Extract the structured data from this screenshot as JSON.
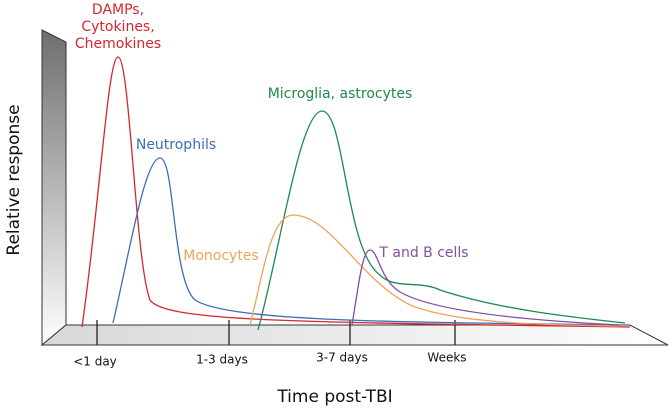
{
  "y_axis_label": "Relative response",
  "x_axis_label": "Time post-TBI",
  "x_ticks": [
    "<1 day",
    "1-3 days",
    "3-7 days",
    "Weeks"
  ],
  "curve_labels": {
    "damps": [
      "DAMPs,",
      "Cytokines,",
      "Chemokines"
    ],
    "neutrophils": "Neutrophils",
    "microglia": "Microglia, astrocytes",
    "monocytes": "Monocytes",
    "lymphocytes": "T and B cells"
  }
}
